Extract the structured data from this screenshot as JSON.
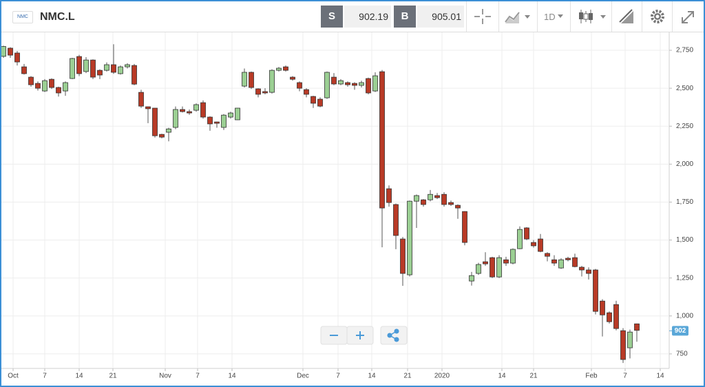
{
  "header": {
    "logo": "NMC",
    "symbol": "NMC.L",
    "sell_label": "S",
    "sell": 902.19,
    "buy_label": "B",
    "buy": 905.01,
    "interval": "1D"
  },
  "chart_data": {
    "type": "candlestick",
    "up_color": "#9bcf93",
    "down_color": "#b83a26",
    "grid": true,
    "xlim": [
      -0.1,
      96.7
    ],
    "ylim": [
      668,
      2859
    ],
    "xticks": [
      {
        "value": 1.4,
        "label": "Oct"
      },
      {
        "value": 6,
        "label": "7"
      },
      {
        "value": 11,
        "label": "14"
      },
      {
        "value": 15.9,
        "label": "21"
      },
      {
        "value": 23.5,
        "label": "Nov"
      },
      {
        "value": 28.2,
        "label": "7"
      },
      {
        "value": 33.2,
        "label": "14"
      },
      {
        "value": 43.5,
        "label": "Dec"
      },
      {
        "value": 48.6,
        "label": "7"
      },
      {
        "value": 53.5,
        "label": "14"
      },
      {
        "value": 58.7,
        "label": "21"
      },
      {
        "value": 63.7,
        "label": "2020"
      },
      {
        "value": 72.4,
        "label": "14"
      },
      {
        "value": 77,
        "label": "21"
      },
      {
        "value": 85.4,
        "label": "Feb"
      },
      {
        "value": 90.3,
        "label": "7"
      },
      {
        "value": 95.4,
        "label": "14"
      }
    ],
    "yticks": [
      {
        "value": 750,
        "label": "750"
      },
      {
        "value": 1000,
        "label": "1,000"
      },
      {
        "value": 1250,
        "label": "1,250"
      },
      {
        "value": 1500,
        "label": "1,500"
      },
      {
        "value": 1750,
        "label": "1,750"
      },
      {
        "value": 2000,
        "label": "2,000"
      },
      {
        "value": 2250,
        "label": "2,250"
      },
      {
        "value": 2500,
        "label": "2,500"
      },
      {
        "value": 2750,
        "label": "2,750"
      }
    ],
    "last_price": 902,
    "candles": [
      {
        "x": 0,
        "open": 2710,
        "high": 2780,
        "low": 2700,
        "close": 2775
      },
      {
        "x": 1,
        "open": 2764,
        "high": 2770,
        "low": 2700,
        "close": 2718
      },
      {
        "x": 2,
        "open": 2732,
        "high": 2745,
        "low": 2650,
        "close": 2673
      },
      {
        "x": 3,
        "open": 2641,
        "high": 2660,
        "low": 2590,
        "close": 2596
      },
      {
        "x": 4,
        "open": 2573,
        "high": 2580,
        "low": 2510,
        "close": 2523
      },
      {
        "x": 5,
        "open": 2532,
        "high": 2545,
        "low": 2485,
        "close": 2500
      },
      {
        "x": 6,
        "open": 2482,
        "high": 2560,
        "low": 2475,
        "close": 2550
      },
      {
        "x": 7,
        "open": 2559,
        "high": 2565,
        "low": 2495,
        "close": 2505
      },
      {
        "x": 8,
        "open": 2505,
        "high": 2510,
        "low": 2445,
        "close": 2469
      },
      {
        "x": 9,
        "open": 2482,
        "high": 2545,
        "low": 2450,
        "close": 2537
      },
      {
        "x": 10,
        "open": 2564,
        "high": 2700,
        "low": 2560,
        "close": 2696
      },
      {
        "x": 11,
        "open": 2709,
        "high": 2720,
        "low": 2580,
        "close": 2596
      },
      {
        "x": 12,
        "open": 2610,
        "high": 2705,
        "low": 2600,
        "close": 2686
      },
      {
        "x": 13,
        "open": 2686,
        "high": 2690,
        "low": 2560,
        "close": 2573
      },
      {
        "x": 14,
        "open": 2618,
        "high": 2625,
        "low": 2560,
        "close": 2587
      },
      {
        "x": 15,
        "open": 2618,
        "high": 2670,
        "low": 2610,
        "close": 2655
      },
      {
        "x": 16,
        "open": 2655,
        "high": 2790,
        "low": 2595,
        "close": 2605
      },
      {
        "x": 17,
        "open": 2596,
        "high": 2650,
        "low": 2590,
        "close": 2641
      },
      {
        "x": 18,
        "open": 2641,
        "high": 2665,
        "low": 2630,
        "close": 2655
      },
      {
        "x": 19,
        "open": 2650,
        "high": 2660,
        "low": 2520,
        "close": 2527
      },
      {
        "x": 20,
        "open": 2473,
        "high": 2490,
        "low": 2370,
        "close": 2382
      },
      {
        "x": 21,
        "open": 2378,
        "high": 2380,
        "low": 2270,
        "close": 2365
      },
      {
        "x": 22,
        "open": 2369,
        "high": 2370,
        "low": 2175,
        "close": 2187
      },
      {
        "x": 23,
        "open": 2196,
        "high": 2200,
        "low": 2170,
        "close": 2178
      },
      {
        "x": 24,
        "open": 2210,
        "high": 2240,
        "low": 2150,
        "close": 2232
      },
      {
        "x": 25,
        "open": 2242,
        "high": 2380,
        "low": 2230,
        "close": 2360
      },
      {
        "x": 26,
        "open": 2360,
        "high": 2380,
        "low": 2340,
        "close": 2346
      },
      {
        "x": 27,
        "open": 2346,
        "high": 2360,
        "low": 2325,
        "close": 2337
      },
      {
        "x": 28,
        "open": 2355,
        "high": 2400,
        "low": 2345,
        "close": 2392
      },
      {
        "x": 29,
        "open": 2405,
        "high": 2420,
        "low": 2300,
        "close": 2310
      },
      {
        "x": 30,
        "open": 2310,
        "high": 2315,
        "low": 2220,
        "close": 2265
      },
      {
        "x": 31,
        "open": 2278,
        "high": 2280,
        "low": 2240,
        "close": 2269
      },
      {
        "x": 32,
        "open": 2242,
        "high": 2330,
        "low": 2225,
        "close": 2323
      },
      {
        "x": 33,
        "open": 2310,
        "high": 2345,
        "low": 2300,
        "close": 2337
      },
      {
        "x": 34,
        "open": 2292,
        "high": 2370,
        "low": 2290,
        "close": 2369
      },
      {
        "x": 35,
        "open": 2514,
        "high": 2630,
        "low": 2505,
        "close": 2605
      },
      {
        "x": 36,
        "open": 2605,
        "high": 2610,
        "low": 2495,
        "close": 2505
      },
      {
        "x": 37,
        "open": 2496,
        "high": 2500,
        "low": 2440,
        "close": 2460
      },
      {
        "x": 38,
        "open": 2478,
        "high": 2500,
        "low": 2460,
        "close": 2469
      },
      {
        "x": 39,
        "open": 2473,
        "high": 2625,
        "low": 2465,
        "close": 2618
      },
      {
        "x": 40,
        "open": 2618,
        "high": 2640,
        "low": 2610,
        "close": 2632
      },
      {
        "x": 41,
        "open": 2641,
        "high": 2650,
        "low": 2610,
        "close": 2618
      },
      {
        "x": 42,
        "open": 2573,
        "high": 2580,
        "low": 2550,
        "close": 2559
      },
      {
        "x": 43,
        "open": 2537,
        "high": 2545,
        "low": 2480,
        "close": 2500
      },
      {
        "x": 44,
        "open": 2491,
        "high": 2500,
        "low": 2440,
        "close": 2460
      },
      {
        "x": 45,
        "open": 2446,
        "high": 2450,
        "low": 2370,
        "close": 2401
      },
      {
        "x": 46,
        "open": 2428,
        "high": 2440,
        "low": 2375,
        "close": 2382
      },
      {
        "x": 47,
        "open": 2437,
        "high": 2610,
        "low": 2430,
        "close": 2605
      },
      {
        "x": 48,
        "open": 2573,
        "high": 2600,
        "low": 2520,
        "close": 2528
      },
      {
        "x": 49,
        "open": 2528,
        "high": 2560,
        "low": 2520,
        "close": 2550
      },
      {
        "x": 50,
        "open": 2537,
        "high": 2545,
        "low": 2510,
        "close": 2523
      },
      {
        "x": 51,
        "open": 2532,
        "high": 2540,
        "low": 2490,
        "close": 2519
      },
      {
        "x": 52,
        "open": 2519,
        "high": 2550,
        "low": 2505,
        "close": 2537
      },
      {
        "x": 53,
        "open": 2564,
        "high": 2570,
        "low": 2460,
        "close": 2469
      },
      {
        "x": 54,
        "open": 2482,
        "high": 2605,
        "low": 2475,
        "close": 2582
      },
      {
        "x": 55,
        "open": 2609,
        "high": 2620,
        "low": 1452,
        "close": 1711
      },
      {
        "x": 56,
        "open": 1838,
        "high": 1860,
        "low": 1720,
        "close": 1747
      },
      {
        "x": 57,
        "open": 1734,
        "high": 1740,
        "low": 1440,
        "close": 1530
      },
      {
        "x": 58,
        "open": 1507,
        "high": 1520,
        "low": 1198,
        "close": 1280
      },
      {
        "x": 59,
        "open": 1271,
        "high": 1760,
        "low": 1260,
        "close": 1756
      },
      {
        "x": 60,
        "open": 1756,
        "high": 1800,
        "low": 1580,
        "close": 1793
      },
      {
        "x": 61,
        "open": 1765,
        "high": 1770,
        "low": 1720,
        "close": 1734
      },
      {
        "x": 62,
        "open": 1765,
        "high": 1830,
        "low": 1755,
        "close": 1801
      },
      {
        "x": 63,
        "open": 1793,
        "high": 1810,
        "low": 1770,
        "close": 1779
      },
      {
        "x": 64,
        "open": 1801,
        "high": 1815,
        "low": 1720,
        "close": 1734
      },
      {
        "x": 65,
        "open": 1747,
        "high": 1760,
        "low": 1725,
        "close": 1734
      },
      {
        "x": 66,
        "open": 1729,
        "high": 1735,
        "low": 1640,
        "close": 1711
      },
      {
        "x": 67,
        "open": 1688,
        "high": 1690,
        "low": 1465,
        "close": 1484
      },
      {
        "x": 68,
        "open": 1230,
        "high": 1290,
        "low": 1200,
        "close": 1266
      },
      {
        "x": 69,
        "open": 1280,
        "high": 1350,
        "low": 1270,
        "close": 1339
      },
      {
        "x": 70,
        "open": 1357,
        "high": 1420,
        "low": 1330,
        "close": 1343
      },
      {
        "x": 71,
        "open": 1384,
        "high": 1390,
        "low": 1250,
        "close": 1257
      },
      {
        "x": 72,
        "open": 1257,
        "high": 1400,
        "low": 1250,
        "close": 1384
      },
      {
        "x": 73,
        "open": 1370,
        "high": 1390,
        "low": 1330,
        "close": 1348
      },
      {
        "x": 74,
        "open": 1348,
        "high": 1445,
        "low": 1340,
        "close": 1439
      },
      {
        "x": 75,
        "open": 1443,
        "high": 1590,
        "low": 1440,
        "close": 1570
      },
      {
        "x": 76,
        "open": 1580,
        "high": 1585,
        "low": 1500,
        "close": 1507
      },
      {
        "x": 77,
        "open": 1484,
        "high": 1500,
        "low": 1450,
        "close": 1462
      },
      {
        "x": 78,
        "open": 1507,
        "high": 1540,
        "low": 1420,
        "close": 1425
      },
      {
        "x": 79,
        "open": 1412,
        "high": 1420,
        "low": 1360,
        "close": 1393
      },
      {
        "x": 80,
        "open": 1370,
        "high": 1400,
        "low": 1330,
        "close": 1348
      },
      {
        "x": 81,
        "open": 1316,
        "high": 1380,
        "low": 1310,
        "close": 1370
      },
      {
        "x": 82,
        "open": 1380,
        "high": 1390,
        "low": 1360,
        "close": 1370
      },
      {
        "x": 83,
        "open": 1384,
        "high": 1410,
        "low": 1320,
        "close": 1325
      },
      {
        "x": 84,
        "open": 1321,
        "high": 1330,
        "low": 1260,
        "close": 1303
      },
      {
        "x": 85,
        "open": 1303,
        "high": 1320,
        "low": 1240,
        "close": 1280
      },
      {
        "x": 86,
        "open": 1303,
        "high": 1310,
        "low": 1010,
        "close": 1030
      },
      {
        "x": 87,
        "open": 1098,
        "high": 1110,
        "low": 865,
        "close": 1007
      },
      {
        "x": 88,
        "open": 1021,
        "high": 1030,
        "low": 950,
        "close": 962
      },
      {
        "x": 89,
        "open": 1075,
        "high": 1100,
        "low": 905,
        "close": 917
      },
      {
        "x": 90,
        "open": 903,
        "high": 920,
        "low": 690,
        "close": 713
      },
      {
        "x": 91,
        "open": 790,
        "high": 910,
        "low": 720,
        "close": 894
      },
      {
        "x": 92,
        "open": 948,
        "high": 950,
        "low": 830,
        "close": 905
      }
    ]
  }
}
